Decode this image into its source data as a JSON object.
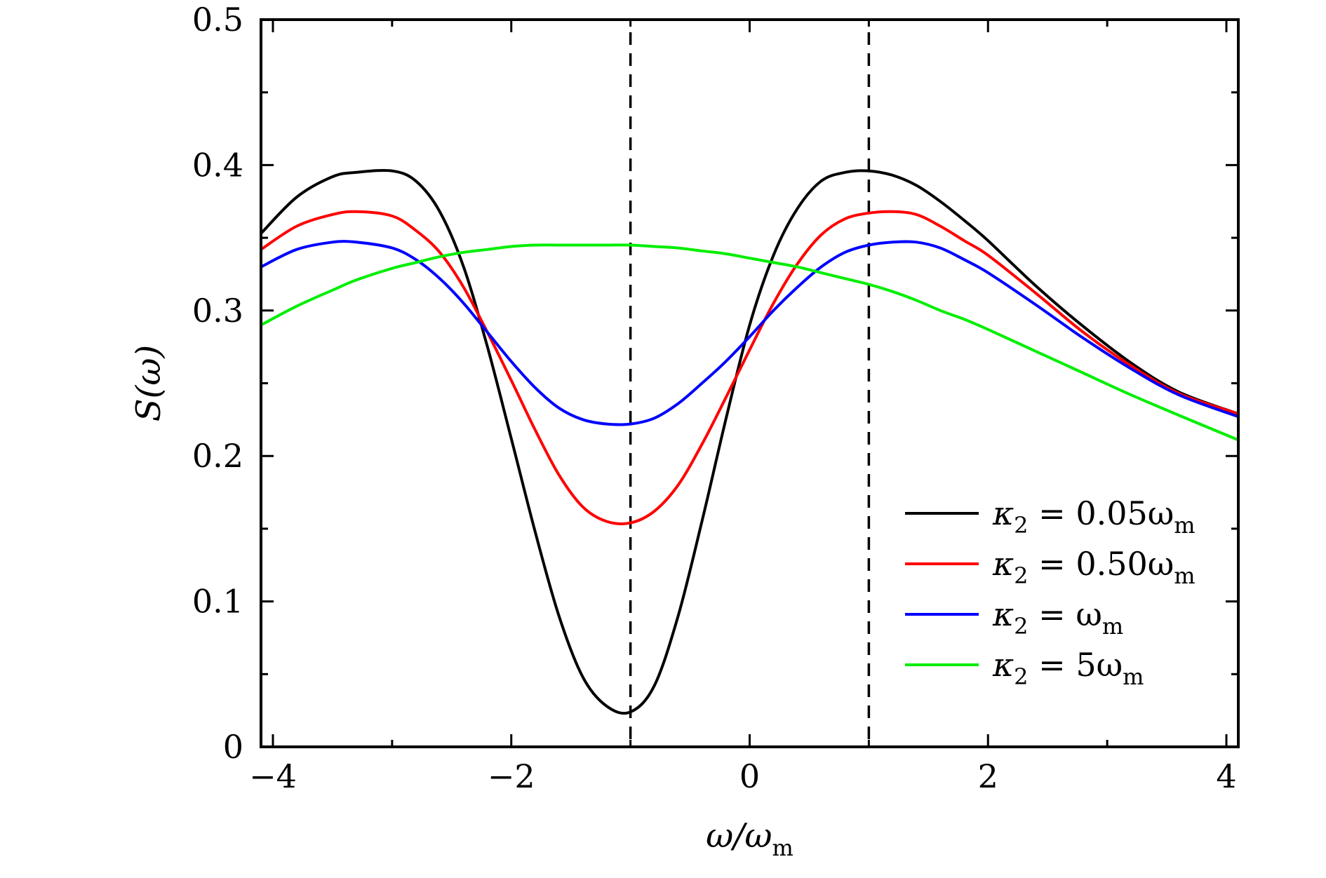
{
  "chart_data": {
    "type": "line",
    "title": "",
    "xlabel": "ω/ωm",
    "ylabel": "S(ω)",
    "xlim": [
      -4.1,
      4.1
    ],
    "ylim": [
      0,
      0.5
    ],
    "xticks": [
      -4,
      -2,
      0,
      2,
      4
    ],
    "xtick_labels": [
      "−4",
      "−2",
      "0",
      "2",
      "4"
    ],
    "yticks": [
      0,
      0.1,
      0.2,
      0.3,
      0.4,
      0.5
    ],
    "ytick_labels": [
      "0",
      "0.1",
      "0.2",
      "0.3",
      "0.4",
      "0.5"
    ],
    "vlines": [
      -1,
      1
    ],
    "legend_position": "lower-right",
    "x": [
      -4.1,
      -3.8,
      -3.5,
      -3.3,
      -3.0,
      -2.8,
      -2.6,
      -2.4,
      -2.2,
      -2.0,
      -1.8,
      -1.6,
      -1.4,
      -1.2,
      -1.0,
      -0.8,
      -0.6,
      -0.4,
      -0.2,
      0.0,
      0.2,
      0.4,
      0.6,
      0.8,
      1.0,
      1.2,
      1.4,
      1.6,
      1.8,
      2.0,
      2.4,
      2.8,
      3.2,
      3.6,
      4.1
    ],
    "series": [
      {
        "name": "κ2 = 0.05ωm",
        "label_main": "κ",
        "label_sub": "2",
        "label_eq": " = 0.05ω",
        "label_sub2": "m",
        "color": "#000000",
        "values": [
          0.353,
          0.378,
          0.392,
          0.395,
          0.396,
          0.389,
          0.368,
          0.33,
          0.275,
          0.212,
          0.148,
          0.09,
          0.048,
          0.028,
          0.024,
          0.042,
          0.09,
          0.155,
          0.225,
          0.29,
          0.338,
          0.37,
          0.389,
          0.395,
          0.396,
          0.393,
          0.386,
          0.375,
          0.362,
          0.348,
          0.317,
          0.289,
          0.264,
          0.244,
          0.229
        ]
      },
      {
        "name": "κ2 = 0.50ωm",
        "label_main": "κ",
        "label_sub": "2",
        "label_eq": " = 0.50ω",
        "label_sub2": "m",
        "color": "#ff0000",
        "values": [
          0.342,
          0.358,
          0.366,
          0.368,
          0.365,
          0.355,
          0.34,
          0.316,
          0.285,
          0.252,
          0.218,
          0.187,
          0.165,
          0.155,
          0.154,
          0.162,
          0.18,
          0.208,
          0.24,
          0.273,
          0.305,
          0.332,
          0.352,
          0.363,
          0.367,
          0.368,
          0.366,
          0.358,
          0.348,
          0.338,
          0.312,
          0.285,
          0.262,
          0.243,
          0.229
        ]
      },
      {
        "name": "κ2 = ωm",
        "label_main": "κ",
        "label_sub": "2",
        "label_eq": " = ω",
        "label_sub2": "m",
        "color": "#0000ff",
        "values": [
          0.33,
          0.342,
          0.347,
          0.347,
          0.343,
          0.335,
          0.322,
          0.305,
          0.285,
          0.265,
          0.247,
          0.233,
          0.225,
          0.222,
          0.222,
          0.226,
          0.236,
          0.25,
          0.265,
          0.282,
          0.3,
          0.316,
          0.33,
          0.34,
          0.345,
          0.347,
          0.347,
          0.343,
          0.335,
          0.326,
          0.304,
          0.281,
          0.26,
          0.242,
          0.227
        ]
      },
      {
        "name": "κ2 = 5ωm",
        "label_main": "κ",
        "label_sub": "2",
        "label_eq": " = 5ω",
        "label_sub2": "m",
        "color": "#00ee00",
        "values": [
          0.29,
          0.303,
          0.314,
          0.321,
          0.329,
          0.333,
          0.337,
          0.34,
          0.342,
          0.344,
          0.345,
          0.345,
          0.345,
          0.345,
          0.345,
          0.344,
          0.343,
          0.341,
          0.339,
          0.336,
          0.333,
          0.33,
          0.326,
          0.322,
          0.318,
          0.313,
          0.307,
          0.3,
          0.294,
          0.287,
          0.272,
          0.257,
          0.242,
          0.228,
          0.211
        ]
      }
    ]
  }
}
